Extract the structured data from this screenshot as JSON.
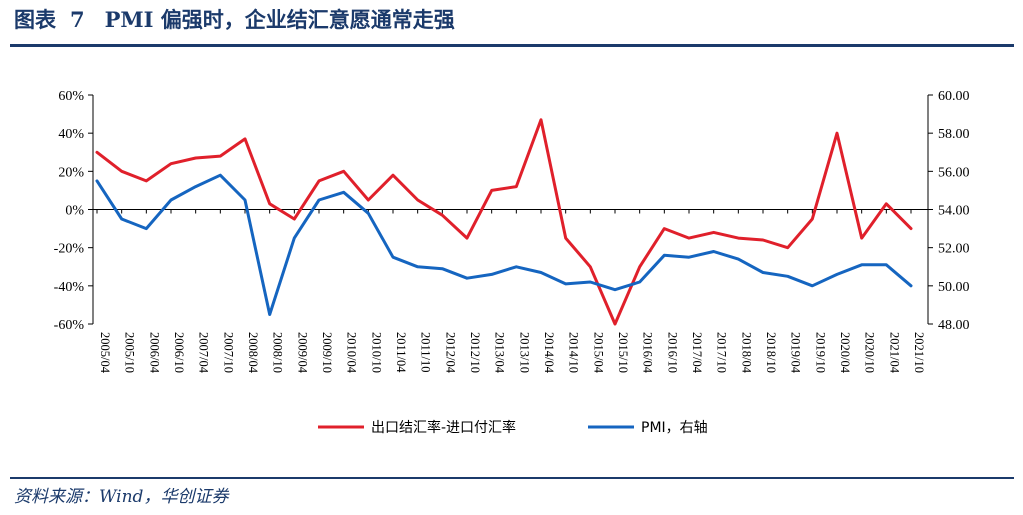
{
  "header": {
    "label": "图表",
    "number": "7",
    "title": "PMI 偏强时，企业结汇意愿通常走强"
  },
  "source": "资料来源：Wind，华创证券",
  "colors": {
    "navy": "#1b3a6b",
    "red": "#e0202b",
    "blue": "#1565c0"
  },
  "chart_data": {
    "type": "line",
    "x": [
      "2005/04",
      "2005/10",
      "2006/04",
      "2006/10",
      "2007/04",
      "2007/10",
      "2008/04",
      "2008/10",
      "2009/04",
      "2009/10",
      "2010/04",
      "2010/10",
      "2011/04",
      "2011/10",
      "2012/04",
      "2012/10",
      "2013/04",
      "2013/10",
      "2014/04",
      "2014/10",
      "2015/04",
      "2015/10",
      "2016/04",
      "2016/10",
      "2017/04",
      "2017/10",
      "2018/04",
      "2018/10",
      "2019/04",
      "2019/10",
      "2020/04",
      "2020/10",
      "2021/04",
      "2021/10"
    ],
    "y_left": {
      "ylim": [
        -60,
        60
      ],
      "ticks": [
        "60%",
        "40%",
        "20%",
        "0%",
        "-20%",
        "-40%",
        "-60%"
      ]
    },
    "y_right": {
      "ylim": [
        48,
        60
      ],
      "ticks": [
        "60.00",
        "58.00",
        "56.00",
        "54.00",
        "52.00",
        "50.00",
        "48.00"
      ]
    },
    "series": [
      {
        "name": "出口结汇率-进口付汇率",
        "axis": "left",
        "color": "#e0202b",
        "values": [
          30,
          20,
          15,
          24,
          27,
          28,
          37,
          3,
          -5,
          15,
          20,
          5,
          18,
          5,
          -3,
          -15,
          10,
          12,
          47,
          -15,
          -30,
          -65,
          -30,
          -10,
          -15,
          -12,
          -15,
          -16,
          -20,
          -5,
          40,
          -15,
          3,
          -10
        ]
      },
      {
        "name": "PMI，右轴",
        "axis": "right",
        "color": "#1565c0",
        "values": [
          55.5,
          53.5,
          53.0,
          54.5,
          55.2,
          55.8,
          54.5,
          48.5,
          52.5,
          54.5,
          54.9,
          53.8,
          51.5,
          51.0,
          50.9,
          50.4,
          50.6,
          51.0,
          50.7,
          50.1,
          50.2,
          49.8,
          50.2,
          51.6,
          51.5,
          51.8,
          51.4,
          50.7,
          50.5,
          50.0,
          50.6,
          51.1,
          51.1,
          50.0
        ]
      }
    ],
    "legend": "bottom-center",
    "grid": false
  }
}
